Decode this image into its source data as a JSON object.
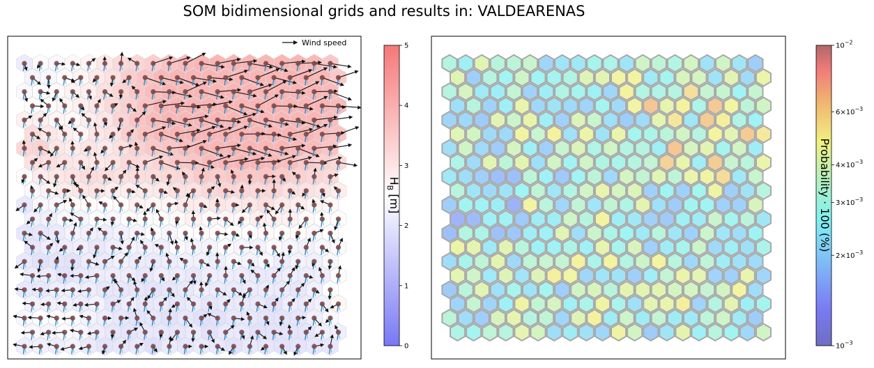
{
  "figure": {
    "title": "SOM bidimensional grids and results in: VALDEARENAS"
  },
  "chart_data": [
    {
      "type": "heatmap",
      "description_type": "som-hexagonal-grid-with-vectors",
      "grid": {
        "cols": 20,
        "rows": 21
      },
      "legend": {
        "label": "Wind speed",
        "placement": "top-right"
      },
      "colorbar": {
        "label": "H_B [m]",
        "range": [
          0,
          5
        ],
        "ticks": [
          "0",
          "1",
          "2",
          "3",
          "4",
          "5"
        ],
        "colormap": "bwr",
        "alpha": 0.5
      },
      "grid_on": false
    },
    {
      "type": "heatmap",
      "description_type": "som-hexagonal-probability-map",
      "grid": {
        "cols": 20,
        "rows": 20
      },
      "colorbar": {
        "label": "Probability · 100 (%)",
        "scale": "log",
        "range": [
          0.001,
          0.01
        ],
        "ticks": [
          {
            "value": 0.001,
            "label": "10^-3"
          },
          {
            "value": 0.002,
            "label": "2×10^-3"
          },
          {
            "value": 0.003,
            "label": "3×10^-3"
          },
          {
            "value": 0.004,
            "label": "4×10^-3"
          },
          {
            "value": 0.006,
            "label": "6×10^-3"
          },
          {
            "value": 0.01,
            "label": "10^-2"
          }
        ],
        "colormap": "jet",
        "alpha": 0.5
      },
      "grid_on": false
    }
  ],
  "colors": {
    "low_blue": "#6f6ff0",
    "high_red": "#f06f6f",
    "dot": "#7a4a4a",
    "arrow": "#111111",
    "hex_edge_right": "#a8a8a8"
  }
}
